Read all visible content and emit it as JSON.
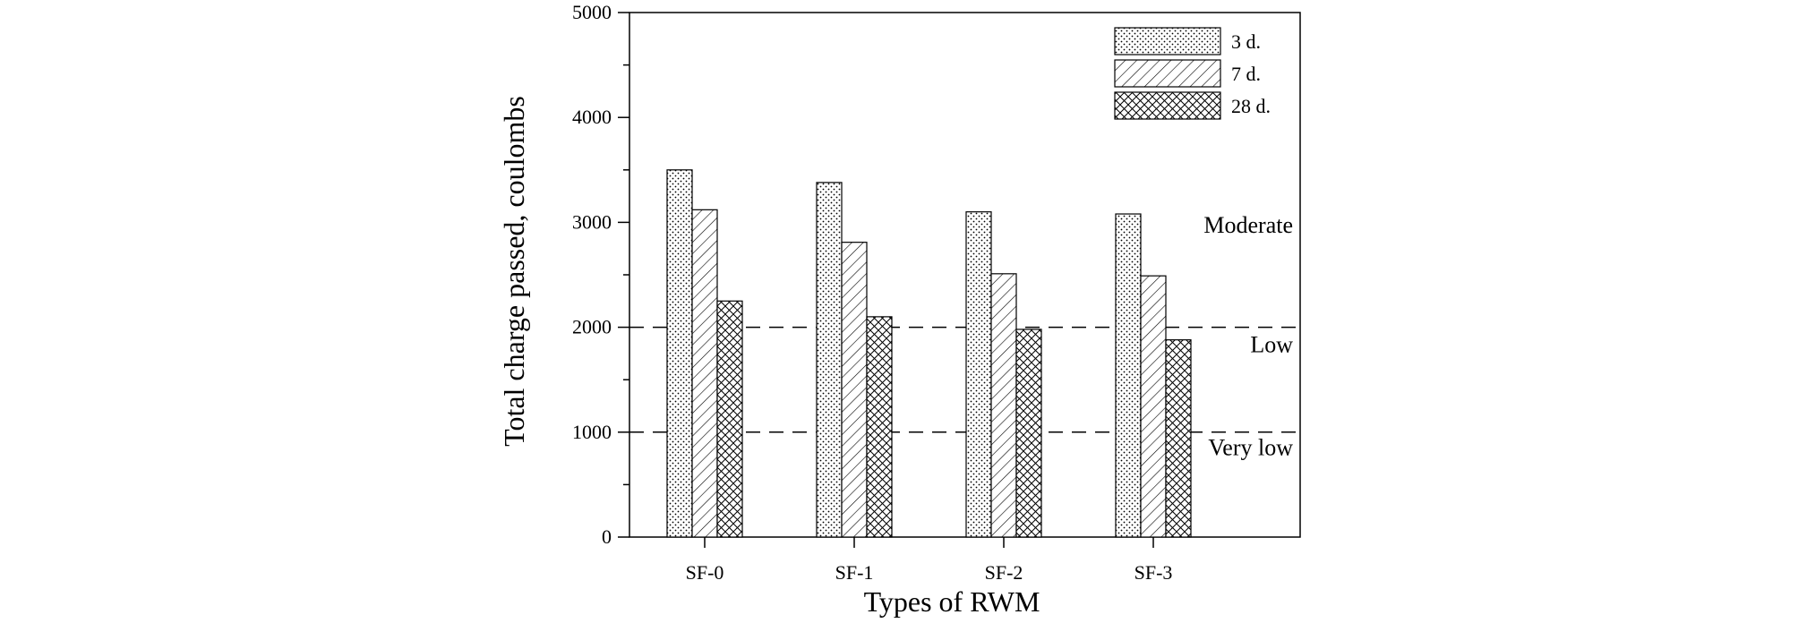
{
  "chart_data": {
    "type": "bar",
    "title": "",
    "xlabel": "Types of RWM",
    "ylabel": "Total charge passed, coulombs",
    "categories": [
      "SF-0",
      "SF-1",
      "SF-2",
      "SF-3"
    ],
    "series": [
      {
        "name": "3 d.",
        "pattern": "dots",
        "values": [
          3500,
          3380,
          3100,
          3080
        ]
      },
      {
        "name": "7 d.",
        "pattern": "hatch",
        "values": [
          3120,
          2810,
          2510,
          2490
        ]
      },
      {
        "name": "28 d.",
        "pattern": "crosshatch",
        "values": [
          2250,
          2100,
          1980,
          1880
        ]
      }
    ],
    "ylim": [
      0,
      5000
    ],
    "yticks": [
      "0",
      "1000",
      "2000",
      "3000",
      "4000",
      "5000"
    ],
    "y_minor_step": 500,
    "grid": false,
    "legend_position": "top-right",
    "reference_lines": [
      {
        "value": 2000,
        "style": "dashed"
      },
      {
        "value": 1000,
        "style": "dashed"
      }
    ],
    "zone_labels": [
      {
        "text": "Moderate",
        "value": 2900
      },
      {
        "text": "Low",
        "value": 1760
      },
      {
        "text": "Very low",
        "value": 780
      }
    ]
  }
}
